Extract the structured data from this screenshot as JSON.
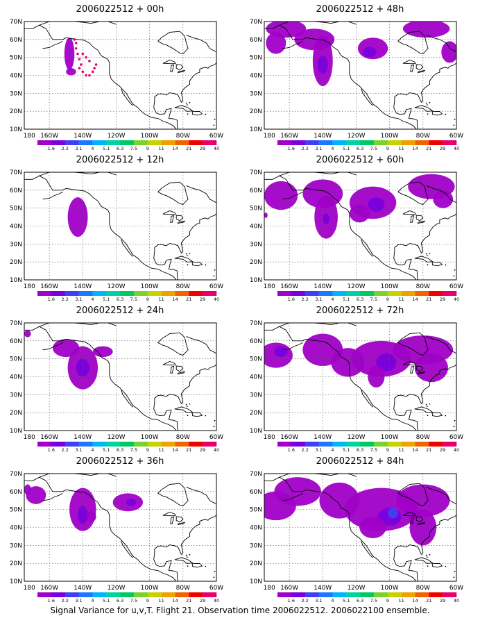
{
  "caption": "Signal Variance for u,v,T. Flight 21. Observation time 2006022512. 2006022100 ensemble.",
  "axes": {
    "lat_labels": [
      "70N",
      "60N",
      "50N",
      "40N",
      "30N",
      "20N",
      "10N"
    ],
    "lon_labels": [
      "180",
      "160W",
      "140W",
      "120W",
      "100W",
      "80W",
      "60W"
    ]
  },
  "legend": {
    "labels": [
      "1.6",
      "2.2",
      "3.1",
      "4",
      "5.1",
      "6.3",
      "7.5",
      "9",
      "11",
      "14",
      "21",
      "29",
      "40"
    ],
    "colors": [
      "#a000c8",
      "#7800dc",
      "#4040f0",
      "#1e78ff",
      "#00b4ff",
      "#00d2a0",
      "#00c864",
      "#78d232",
      "#c8d200",
      "#f0a000",
      "#f06400",
      "#f00000",
      "#e6006e"
    ]
  },
  "panels": [
    {
      "title": "2006022512 + 00h",
      "col": 0,
      "row": 0
    },
    {
      "title": "2006022512 + 48h",
      "col": 1,
      "row": 0
    },
    {
      "title": "2006022512 + 12h",
      "col": 0,
      "row": 1
    },
    {
      "title": "2006022512 + 60h",
      "col": 1,
      "row": 1
    },
    {
      "title": "2006022512 + 24h",
      "col": 0,
      "row": 2
    },
    {
      "title": "2006022512 + 72h",
      "col": 1,
      "row": 2
    },
    {
      "title": "2006022512 + 36h",
      "col": 0,
      "row": 3
    },
    {
      "title": "2006022512 + 84h",
      "col": 1,
      "row": 3
    }
  ],
  "colors": {
    "light_purple": "#a000c8",
    "purple": "#7800dc",
    "blue": "#4040f0",
    "observation_dots": "#e6006e"
  }
}
